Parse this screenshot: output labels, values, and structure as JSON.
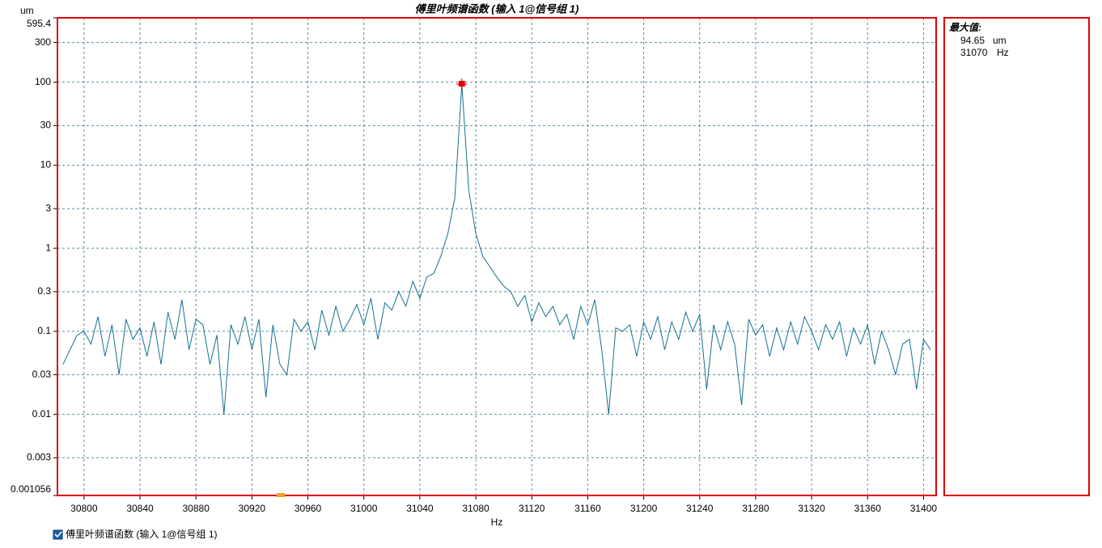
{
  "chart_data": {
    "type": "line",
    "title": "傅里叶频谱函数 (输入 1@信号组 1)",
    "xlabel": "Hz",
    "y_unit": "um",
    "ylog": true,
    "grid": true,
    "xlim": [
      30781,
      31409
    ],
    "ylim": [
      0.001056,
      595.4
    ],
    "xticks": [
      30800,
      30840,
      30880,
      30920,
      30960,
      31000,
      31040,
      31080,
      31120,
      31160,
      31200,
      31240,
      31280,
      31320,
      31360,
      31400
    ],
    "yticks": [
      0.001056,
      0.003,
      0.01,
      0.03,
      0.1,
      0.3,
      1,
      3,
      10,
      30,
      100,
      300,
      595.4
    ],
    "x": [
      30785,
      30790,
      30795,
      30800,
      30805,
      30810,
      30815,
      30820,
      30825,
      30830,
      30835,
      30840,
      30845,
      30850,
      30855,
      30860,
      30865,
      30870,
      30875,
      30880,
      30885,
      30890,
      30895,
      30900,
      30905,
      30910,
      30915,
      30920,
      30925,
      30930,
      30935,
      30940,
      30945,
      30950,
      30955,
      30960,
      30965,
      30970,
      30975,
      30980,
      30985,
      30990,
      30995,
      31000,
      31005,
      31010,
      31015,
      31020,
      31025,
      31030,
      31035,
      31040,
      31045,
      31050,
      31055,
      31060,
      31065,
      31070,
      31075,
      31080,
      31085,
      31090,
      31095,
      31100,
      31105,
      31110,
      31115,
      31120,
      31125,
      31130,
      31135,
      31140,
      31145,
      31150,
      31155,
      31160,
      31165,
      31170,
      31175,
      31180,
      31185,
      31190,
      31195,
      31200,
      31205,
      31210,
      31215,
      31220,
      31225,
      31230,
      31235,
      31240,
      31245,
      31250,
      31255,
      31260,
      31265,
      31270,
      31275,
      31280,
      31285,
      31290,
      31295,
      31300,
      31305,
      31310,
      31315,
      31320,
      31325,
      31330,
      31335,
      31340,
      31345,
      31350,
      31355,
      31360,
      31365,
      31370,
      31375,
      31380,
      31385,
      31390,
      31395,
      31400,
      31405
    ],
    "series": [
      {
        "name": "傅里叶频谱函数 (输入 1@信号组 1)",
        "color": "#14708f",
        "values": [
          0.04,
          0.06,
          0.09,
          0.1,
          0.07,
          0.15,
          0.05,
          0.12,
          0.03,
          0.14,
          0.08,
          0.11,
          0.05,
          0.13,
          0.04,
          0.17,
          0.08,
          0.24,
          0.06,
          0.14,
          0.12,
          0.04,
          0.09,
          0.01,
          0.12,
          0.07,
          0.15,
          0.06,
          0.14,
          0.016,
          0.12,
          0.04,
          0.03,
          0.14,
          0.1,
          0.13,
          0.06,
          0.18,
          0.09,
          0.2,
          0.1,
          0.14,
          0.21,
          0.12,
          0.25,
          0.08,
          0.22,
          0.18,
          0.3,
          0.2,
          0.4,
          0.25,
          0.45,
          0.5,
          0.8,
          1.5,
          4,
          94.65,
          5,
          1.5,
          0.8,
          0.6,
          0.45,
          0.35,
          0.3,
          0.2,
          0.27,
          0.13,
          0.22,
          0.15,
          0.2,
          0.12,
          0.16,
          0.08,
          0.2,
          0.12,
          0.24,
          0.06,
          0.01,
          0.11,
          0.1,
          0.12,
          0.05,
          0.13,
          0.08,
          0.15,
          0.06,
          0.13,
          0.08,
          0.17,
          0.1,
          0.16,
          0.02,
          0.12,
          0.06,
          0.13,
          0.07,
          0.013,
          0.14,
          0.09,
          0.12,
          0.05,
          0.11,
          0.06,
          0.13,
          0.07,
          0.15,
          0.1,
          0.06,
          0.12,
          0.08,
          0.13,
          0.05,
          0.11,
          0.07,
          0.12,
          0.04,
          0.1,
          0.06,
          0.03,
          0.07,
          0.08,
          0.02,
          0.08,
          0.06
        ]
      }
    ],
    "max_panel": {
      "label": "最大值:",
      "value": 94.65,
      "value_unit": "um",
      "freq": 31070,
      "freq_unit": "Hz"
    }
  }
}
